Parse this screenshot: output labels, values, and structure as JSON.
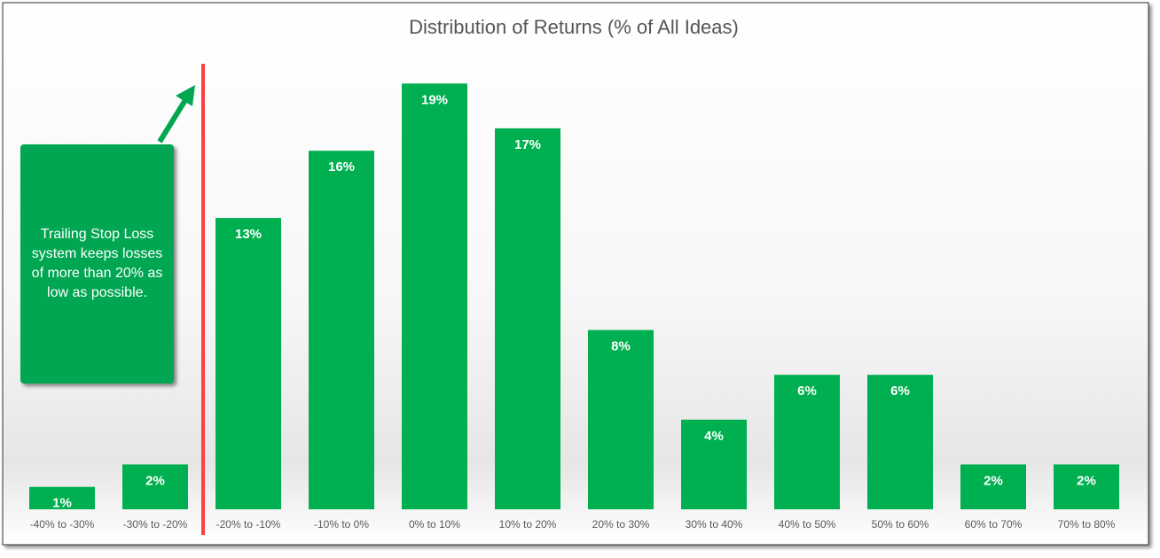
{
  "chart_data": {
    "type": "bar",
    "title": "Distribution of Returns (% of All Ideas)",
    "categories": [
      "-40% to -30%",
      "-30% to -20%",
      "-20% to -10%",
      "-10% to 0%",
      "0% to 10%",
      "10% to 20%",
      "20% to 30%",
      "30% to 40%",
      "40% to 50%",
      "50% to 60%",
      "60% to 70%",
      "70% to 80%"
    ],
    "values": [
      1,
      2,
      13,
      16,
      19,
      17,
      8,
      4,
      6,
      6,
      2,
      2
    ],
    "value_labels": [
      "1%",
      "2%",
      "13%",
      "16%",
      "19%",
      "17%",
      "8%",
      "4%",
      "6%",
      "6%",
      "2%",
      "2%"
    ],
    "color": "#00b050",
    "ylim": [
      0,
      20
    ],
    "annotation": "Trailing Stop Loss system keeps losses of more than 20% as low as possible."
  }
}
